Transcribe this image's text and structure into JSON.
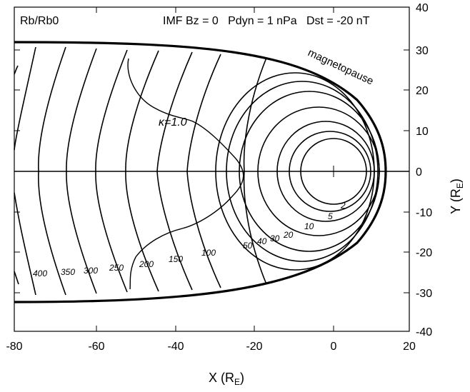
{
  "header": {
    "ratio_label": "Rb/Rb0",
    "conditions": "IMF Bz = 0   Pdyn = 1 nPa   Dst = -20 nT"
  },
  "axes": {
    "x_label": "X (R",
    "x_label_sub": "E",
    "x_label_end": ")",
    "y_label": "Y (R",
    "y_label_sub": "E",
    "y_label_end": ")",
    "x_ticks": [
      "-80",
      "-60",
      "-40",
      "-20",
      "0",
      "20"
    ],
    "y_ticks": [
      "40",
      "30",
      "20",
      "10",
      "0",
      "-10",
      "-20",
      "-30",
      "-40"
    ]
  },
  "annotations": {
    "magnetopause": "magnetopause",
    "kappa": "κ=1.0"
  },
  "contour_labels": {
    "c2": "2",
    "c5": "5",
    "c10": "10",
    "c20": "20",
    "c30": "30",
    "c40": "40",
    "c50": "50",
    "c100": "100",
    "c150": "150",
    "c200": "200",
    "c250": "250",
    "c300": "300",
    "c350": "350",
    "c400": "400"
  }
}
